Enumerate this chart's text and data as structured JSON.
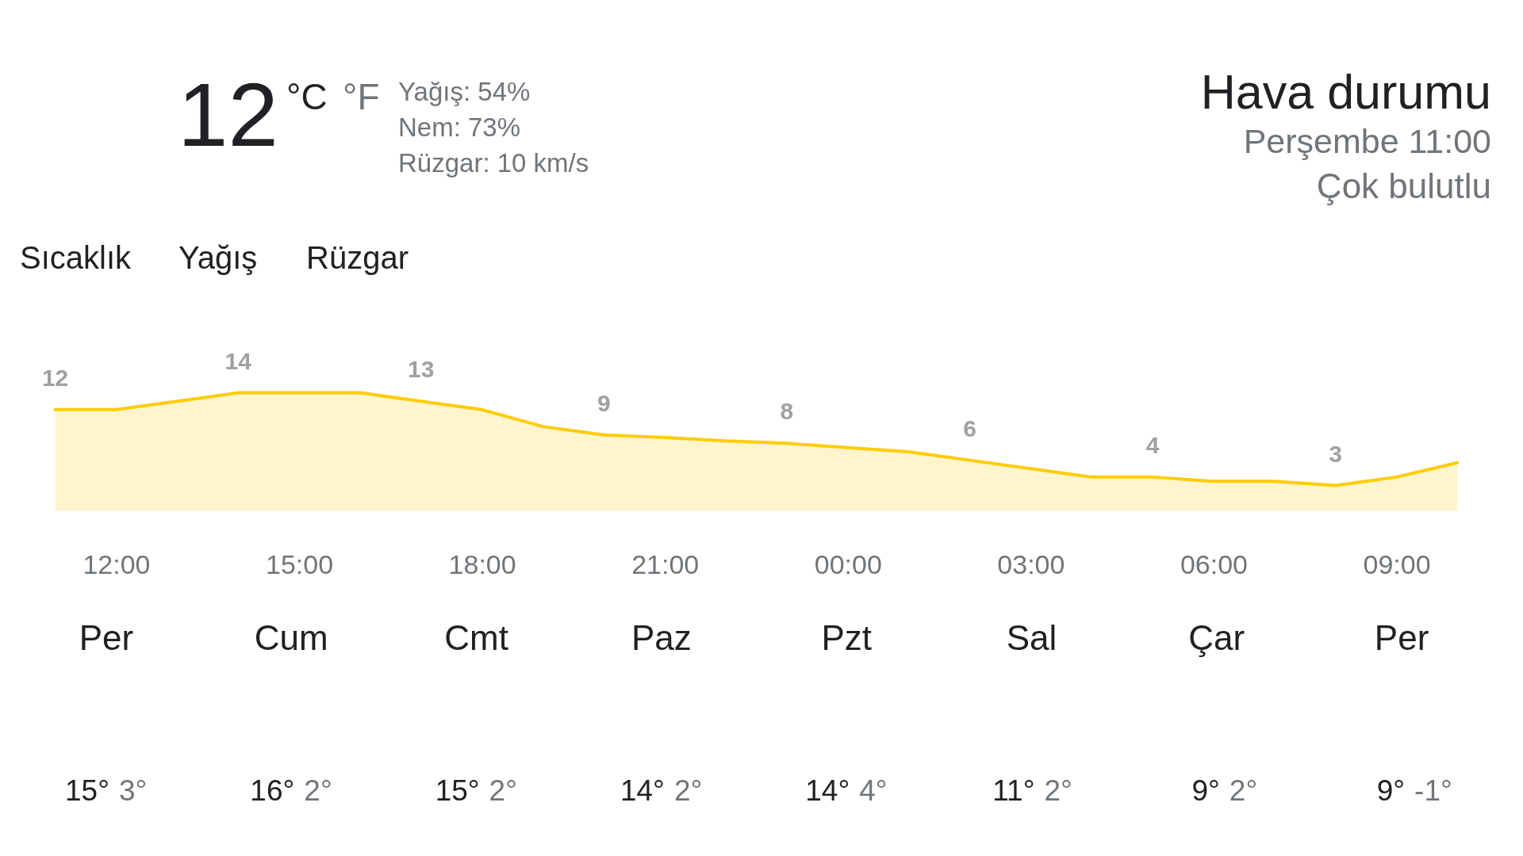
{
  "chart_data": [
    {
      "type": "other",
      "title": "Hava durumu",
      "subtitle": "Perşembe 11:00",
      "annotations": [
        "Çok bulutlu",
        "12",
        "°C",
        "°F",
        "Yağış: 54%",
        "Nem: 73%",
        "Rüzgar: 10 km/s",
        "Sıcaklık",
        "Yağış",
        "Rüzgar"
      ]
    },
    {
      "type": "area",
      "categories": [
        null,
        "12:00",
        null,
        null,
        "15:00",
        null,
        null,
        "18:00",
        null,
        null,
        "21:00",
        null,
        null,
        "00:00",
        null,
        null,
        "03:00",
        null,
        null,
        "06:00",
        null,
        null,
        "09:00",
        null
      ],
      "values": [
        12,
        12,
        13,
        14,
        14,
        14,
        13,
        12,
        10,
        9,
        8.7,
        8.3,
        8,
        7.5,
        7,
        6,
        5,
        4,
        4,
        3.5,
        3.5,
        3,
        4,
        5.7
      ],
      "color": "#ffcc00",
      "value_labels": [
        "12",
        null,
        null,
        "14",
        null,
        null,
        "13",
        null,
        null,
        "9",
        null,
        null,
        "8",
        null,
        null,
        "6",
        null,
        null,
        "4",
        null,
        null,
        "3",
        null,
        null
      ],
      "tick_labels": "x"
    },
    {
      "type": "other",
      "categories": [
        "Per",
        "Cum",
        "Cmt",
        "Paz",
        "Pzt",
        "Sal",
        "Çar",
        "Per"
      ],
      "series": [
        {
          "color": "#202124",
          "values": [
            15,
            16,
            15,
            14,
            14,
            11,
            9,
            9
          ],
          "value_labels": [
            "15°",
            "16°",
            "15°",
            "14°",
            "14°",
            "11°",
            "9°",
            "9°"
          ]
        },
        {
          "color": "#70757a",
          "values": [
            3,
            2,
            2,
            2,
            4,
            2,
            2,
            -1
          ],
          "value_labels": [
            "3°",
            "2°",
            "2°",
            "2°",
            "4°",
            "2°",
            "2°",
            "-1°"
          ]
        }
      ]
    }
  ]
}
